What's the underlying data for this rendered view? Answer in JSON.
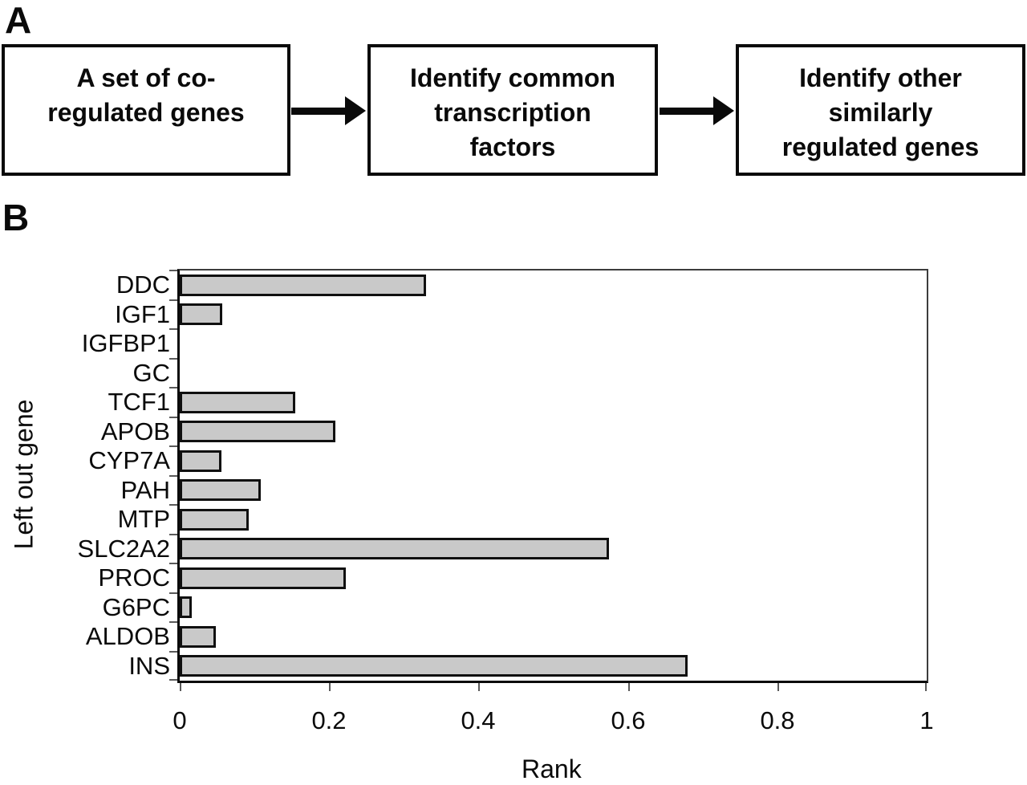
{
  "panel_a": {
    "label": "A",
    "boxes": [
      {
        "name": "coregulated-genes",
        "lines": [
          "A set of co-",
          "regulated genes"
        ]
      },
      {
        "name": "identify-transcription-factors",
        "lines": [
          "Identify common",
          "transcription",
          "factors"
        ]
      },
      {
        "name": "identify-similar-genes",
        "lines": [
          "Identify other",
          "similarly",
          "regulated genes"
        ]
      }
    ]
  },
  "panel_b": {
    "label": "B"
  },
  "chart_data": {
    "type": "bar",
    "orientation": "horizontal",
    "title": "",
    "xlabel": "Rank",
    "ylabel": "Left out gene",
    "categories": [
      "DDC",
      "IGF1",
      "IGFBP1",
      "GC",
      "TCF1",
      "APOB",
      "CYP7A",
      "PAH",
      "MTP",
      "SLC2A2",
      "PROC",
      "G6PC",
      "ALDOB",
      "INS"
    ],
    "values": [
      0.33,
      0.057,
      0,
      0,
      0.155,
      0.208,
      0.056,
      0.109,
      0.092,
      0.575,
      0.222,
      0.016,
      0.048,
      0.68
    ],
    "xlim": [
      0,
      1
    ],
    "xticks": [
      "0",
      "0.2",
      "0.4",
      "0.6",
      "0.8",
      "1"
    ],
    "xtick_values": [
      0,
      0.2,
      0.4,
      0.6,
      0.8,
      1
    ],
    "grid": false,
    "legend": "none",
    "bar_fill_color": "#c9c9c9",
    "bar_border_color": "#101010"
  }
}
